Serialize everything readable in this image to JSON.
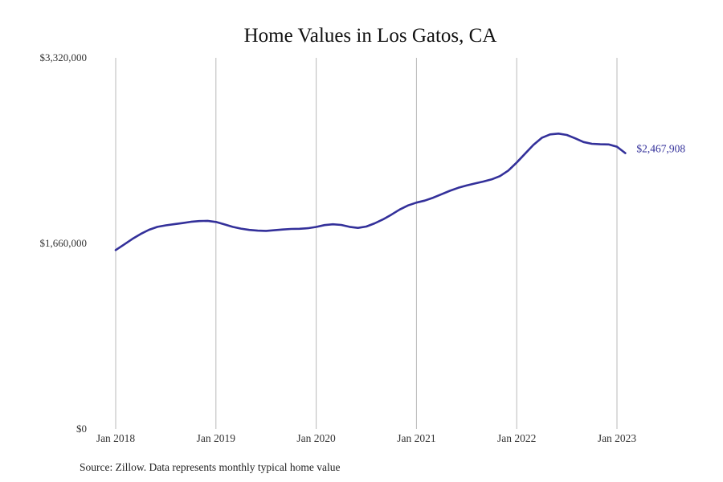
{
  "chart_data": {
    "type": "line",
    "title": "Home Values in Los Gatos, CA",
    "xlabel": "",
    "ylabel": "",
    "ylim": [
      0,
      3320000
    ],
    "yticks": [
      {
        "value": 0,
        "label": "$0"
      },
      {
        "value": 1660000,
        "label": "$1,660,000"
      },
      {
        "value": 3320000,
        "label": "$3,320,000"
      }
    ],
    "xticks": [
      {
        "value": "2018-01",
        "label": "Jan 2018"
      },
      {
        "value": "2019-01",
        "label": "Jan 2019"
      },
      {
        "value": "2020-01",
        "label": "Jan 2020"
      },
      {
        "value": "2021-01",
        "label": "Jan 2021"
      },
      {
        "value": "2022-01",
        "label": "Jan 2022"
      },
      {
        "value": "2023-01",
        "label": "Jan 2023"
      }
    ],
    "grid": "vertical",
    "color": "#33309a",
    "end_label": "$2,467,908",
    "series": [
      {
        "x": [
          "2018-01",
          "2018-02",
          "2018-03",
          "2018-04",
          "2018-05",
          "2018-06",
          "2018-07",
          "2018-08",
          "2018-09",
          "2018-10",
          "2018-11",
          "2018-12",
          "2019-01",
          "2019-02",
          "2019-03",
          "2019-04",
          "2019-05",
          "2019-06",
          "2019-07",
          "2019-08",
          "2019-09",
          "2019-10",
          "2019-11",
          "2019-12",
          "2020-01",
          "2020-02",
          "2020-03",
          "2020-04",
          "2020-05",
          "2020-06",
          "2020-07",
          "2020-08",
          "2020-09",
          "2020-10",
          "2020-11",
          "2020-12",
          "2021-01",
          "2021-02",
          "2021-03",
          "2021-04",
          "2021-05",
          "2021-06",
          "2021-07",
          "2021-08",
          "2021-09",
          "2021-10",
          "2021-11",
          "2021-12",
          "2022-01",
          "2022-02",
          "2022-03",
          "2022-04",
          "2022-05",
          "2022-06",
          "2022-07",
          "2022-08",
          "2022-09",
          "2022-10",
          "2022-11",
          "2022-12",
          "2023-01",
          "2023-02"
        ],
        "values": [
          1600000,
          1650000,
          1700000,
          1745000,
          1782000,
          1808000,
          1822000,
          1832000,
          1842000,
          1853000,
          1860000,
          1862000,
          1852000,
          1830000,
          1808000,
          1792000,
          1781000,
          1774000,
          1772000,
          1778000,
          1784000,
          1789000,
          1791000,
          1796000,
          1807000,
          1824000,
          1831000,
          1825000,
          1808000,
          1799000,
          1811000,
          1840000,
          1875000,
          1917000,
          1963000,
          2000000,
          2025000,
          2043000,
          2069000,
          2100000,
          2131000,
          2157000,
          2178000,
          2196000,
          2213000,
          2233000,
          2262000,
          2312000,
          2384000,
          2463000,
          2541000,
          2604000,
          2635000,
          2642000,
          2630000,
          2600000,
          2567000,
          2551000,
          2547000,
          2545000,
          2525000,
          2467908
        ]
      }
    ]
  },
  "source_note": "Source: Zillow. Data represents monthly typical home value"
}
